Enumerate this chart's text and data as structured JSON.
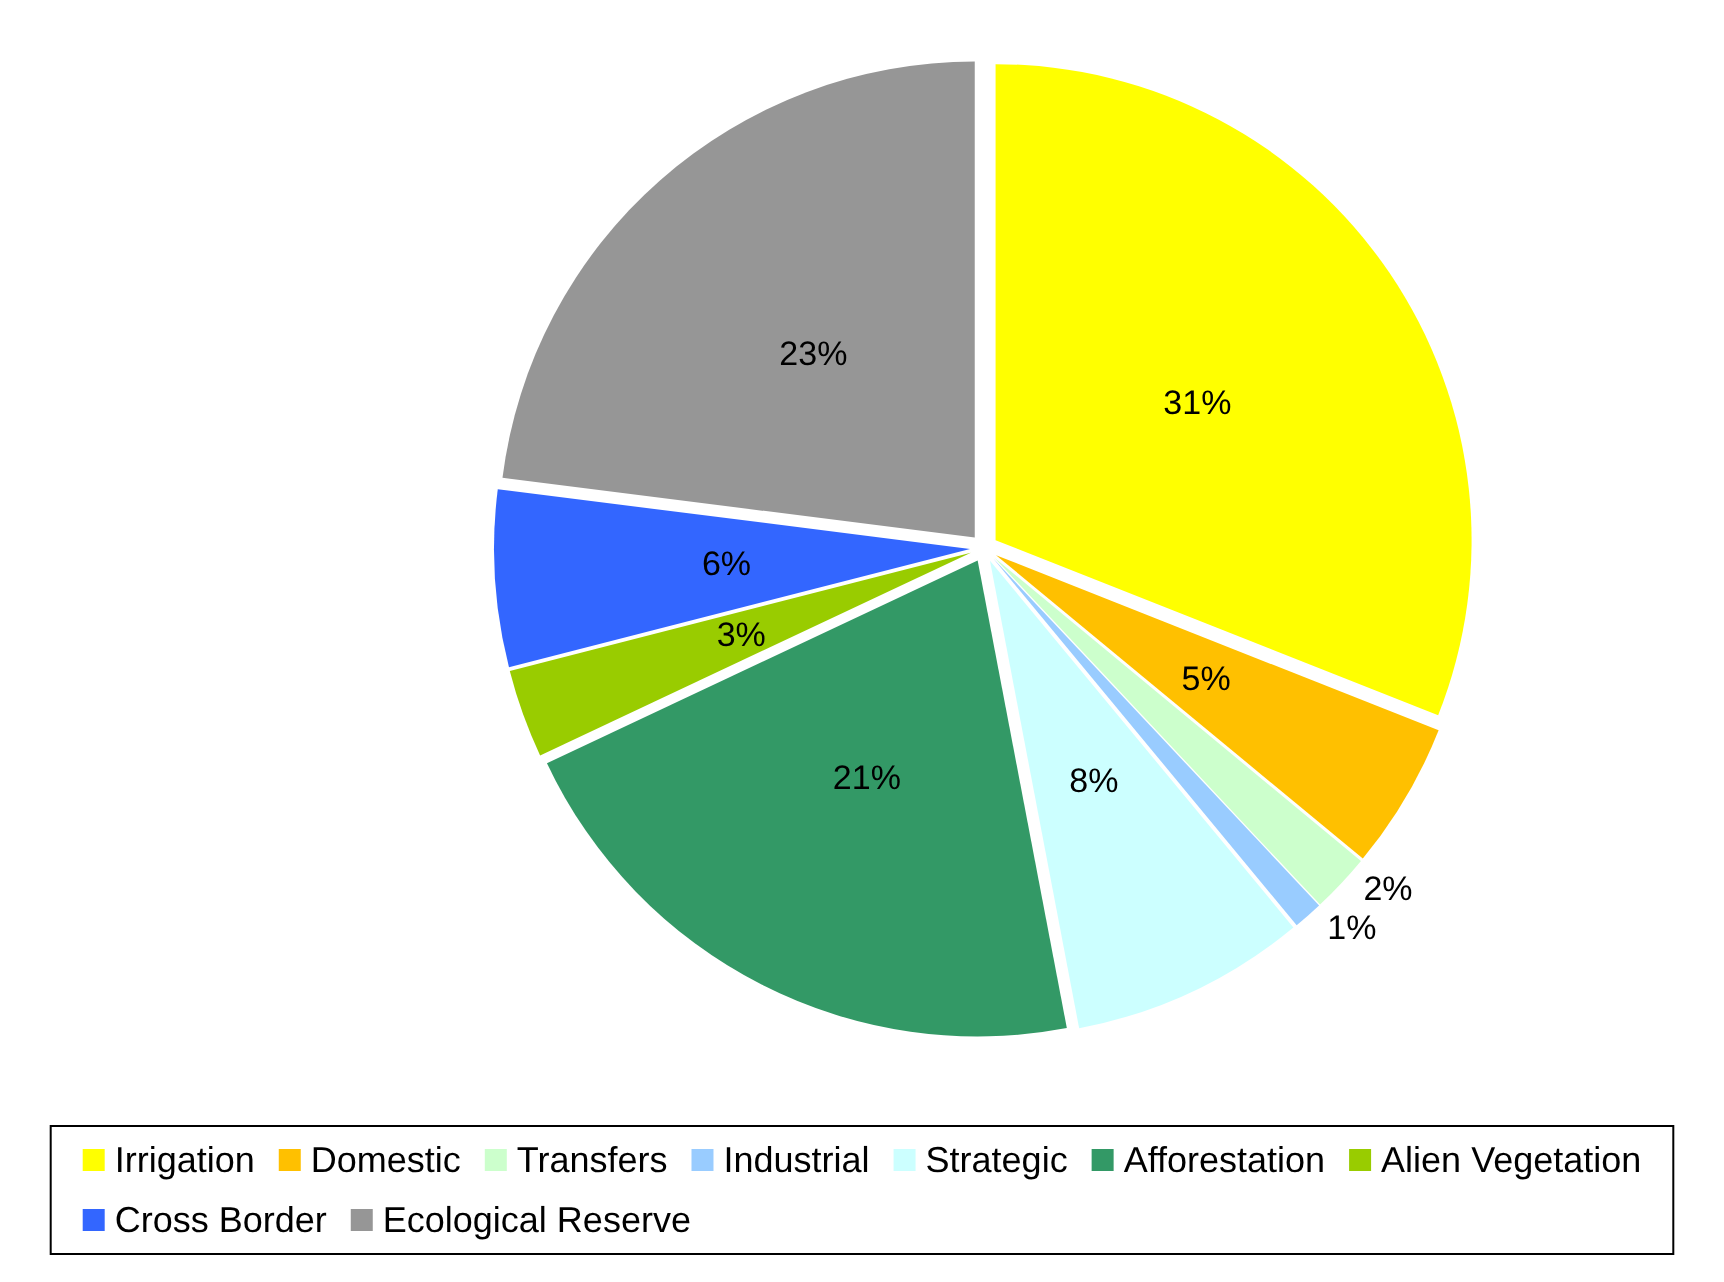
{
  "chart_data": {
    "type": "pie",
    "categories": [
      "Irrigation",
      "Domestic",
      "Transfers",
      "Industrial",
      "Strategic",
      "Afforestation",
      "Alien Vegetation",
      "Cross Border",
      "Ecological Reserve"
    ],
    "values": [
      31,
      5,
      2,
      1,
      8,
      21,
      3,
      6,
      23
    ],
    "colors": [
      "#ffff00",
      "#ffc000",
      "#ccffcc",
      "#99ccff",
      "#ccffff",
      "#339966",
      "#99cc00",
      "#3366ff",
      "#969696"
    ],
    "value_labels": [
      "31%",
      "5%",
      "2%",
      "1%",
      "8%",
      "21%",
      "3%",
      "6%",
      "23%"
    ],
    "legend": "bottom"
  }
}
